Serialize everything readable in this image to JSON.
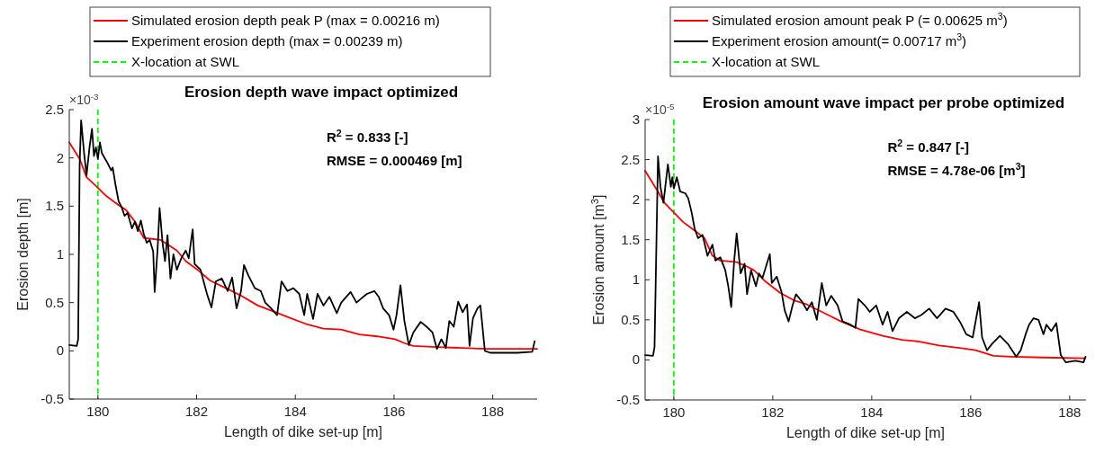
{
  "chart_data": [
    {
      "type": "line",
      "title": "Erosion depth wave impact optimized",
      "xlabel": "Length of dike set-up [m]",
      "ylabel": "Erosion depth [m]",
      "xlim": [
        179.42,
        188.9
      ],
      "xticks": [
        180,
        182,
        184,
        186,
        188
      ],
      "ylim": [
        -0.5,
        2.5
      ],
      "yticks": [
        -0.5,
        0,
        0.5,
        1,
        1.5,
        2,
        2.5
      ],
      "grid": false,
      "legend": "top",
      "annotations": [
        "R$^{2}$ = 0.833 [-]",
        "RMSE = 0.000469 [m]",
        "×10$^{-3}$"
      ],
      "ref_lines": [
        {
          "axis": "x",
          "value": 180,
          "label": "X-location at SWL",
          "color": "#00ff00",
          "line_style": "dashed"
        }
      ],
      "series": [
        {
          "name": "Simulated erosion depth peak P (max = 0.00216 m)",
          "color": "#ff0000",
          "x": [
            179.42,
            179.63,
            179.77,
            179.96,
            180.18,
            180.42,
            180.57,
            180.75,
            180.93,
            181.27,
            181.42,
            181.6,
            181.78,
            182.02,
            182.27,
            182.51,
            182.87,
            183.24,
            183.6,
            183.9,
            184.21,
            184.57,
            184.93,
            185.3,
            185.66,
            186.02,
            186.21,
            186.39,
            186.87,
            187.84,
            188.9
          ],
          "values": [
            2.16,
            1.99,
            1.8,
            1.71,
            1.6,
            1.51,
            1.46,
            1.34,
            1.17,
            1.15,
            1.1,
            1.04,
            0.93,
            0.84,
            0.73,
            0.67,
            0.58,
            0.47,
            0.4,
            0.34,
            0.28,
            0.23,
            0.22,
            0.17,
            0.15,
            0.12,
            0.08,
            0.05,
            0.04,
            0.02,
            0.02
          ]
        },
        {
          "name": "Experiment erosion depth (max = 0.00239 m)",
          "color": "#000000",
          "x": [
            179.42,
            179.57,
            179.6,
            179.63,
            179.66,
            179.72,
            179.77,
            179.83,
            179.88,
            179.92,
            179.96,
            180,
            180.04,
            180.08,
            180.18,
            180.27,
            180.3,
            180.36,
            180.42,
            180.48,
            180.54,
            180.6,
            180.69,
            180.75,
            180.81,
            180.87,
            180.93,
            180.99,
            181.05,
            181.12,
            181.15,
            181.21,
            181.25,
            181.31,
            181.36,
            181.41,
            181.47,
            181.53,
            181.6,
            181.69,
            181.78,
            181.84,
            181.92,
            181.96,
            182.08,
            182.21,
            182.3,
            182.39,
            182.51,
            182.63,
            182.72,
            182.81,
            182.9,
            182.96,
            183.05,
            183.18,
            183.3,
            183.39,
            183.51,
            183.63,
            183.72,
            183.84,
            183.96,
            184.08,
            184.18,
            184.24,
            184.36,
            184.45,
            184.57,
            184.69,
            184.84,
            184.93,
            185.12,
            185.24,
            185.33,
            185.45,
            185.6,
            185.69,
            185.78,
            185.9,
            185.99,
            186.05,
            186.13,
            186.21,
            186.3,
            186.39,
            186.54,
            186.66,
            186.78,
            186.87,
            186.96,
            187.05,
            187.12,
            187.21,
            187.3,
            187.39,
            187.48,
            187.53,
            187.6,
            187.69,
            187.75,
            187.84,
            187.95,
            188.5,
            188.8,
            188.85
          ],
          "values": [
            0.06,
            0.05,
            0.12,
            1.93,
            2.39,
            2.05,
            1.82,
            2.11,
            2.3,
            2.02,
            2.11,
            1.99,
            2.16,
            2.05,
            1.96,
            1.87,
            1.9,
            1.71,
            1.55,
            1.49,
            1.4,
            1.43,
            1.27,
            1.34,
            1.24,
            1.35,
            1.21,
            1.12,
            1.15,
            1.03,
            0.61,
            1.06,
            1.48,
            1.12,
            0.93,
            1.2,
            0.75,
            1,
            0.84,
            0.96,
            1.04,
            0.96,
            1.26,
            0.9,
            0.84,
            0.59,
            0.45,
            0.72,
            0.75,
            0.62,
            0.76,
            0.44,
            0.62,
            0.89,
            0.78,
            0.65,
            0.62,
            0.5,
            0.44,
            0.37,
            0.72,
            0.62,
            0.65,
            0.59,
            0.37,
            0.59,
            0.33,
            0.59,
            0.47,
            0.56,
            0.39,
            0.5,
            0.61,
            0.5,
            0.54,
            0.59,
            0.62,
            0.56,
            0.44,
            0.37,
            0.22,
            0.37,
            0.68,
            0.31,
            0.06,
            0.19,
            0.3,
            0.25,
            0.19,
            0.02,
            0.12,
            0.03,
            0.31,
            0.25,
            0.51,
            0.4,
            0.48,
            0.05,
            0.34,
            0.44,
            0.47,
            0,
            -0.02,
            -0.02,
            -0.01,
            0.1
          ]
        }
      ]
    },
    {
      "type": "line",
      "title": "Erosion amount wave impact per probe optimized",
      "xlabel": "Length of dike set-up [m]",
      "ylabel": "Erosion amount [m$^{3}$]",
      "xlim": [
        179.42,
        188.33
      ],
      "xticks": [
        180,
        182,
        184,
        186,
        188
      ],
      "ylim": [
        -0.5,
        3
      ],
      "yticks": [
        -0.5,
        0,
        0.5,
        1,
        1.5,
        2,
        2.5,
        3
      ],
      "grid": false,
      "legend": "top",
      "annotations": [
        "R$^{2}$ = 0.847 [-]",
        "RMSE = 4.78e-06 [m$^{3}$]",
        "×10$^{-5}$"
      ],
      "ref_lines": [
        {
          "axis": "x",
          "value": 180,
          "label": "X-location at SWL",
          "color": "#00ff00",
          "line_style": "dashed"
        }
      ],
      "series": [
        {
          "name": "Simulated erosion amount peak P (= 0.00625 m$^{3}$)",
          "color": "#ff0000",
          "x": [
            179.42,
            179.68,
            179.81,
            180,
            180.19,
            180.45,
            180.62,
            180.78,
            180.94,
            181.27,
            181.43,
            181.62,
            181.85,
            182.14,
            182.44,
            182.66,
            183.12,
            183.38,
            183.77,
            184.22,
            184.61,
            184.94,
            185.36,
            185.78,
            186.1,
            186.46,
            186.82,
            187.47,
            188.31
          ],
          "values": [
            2.36,
            2.1,
            1.96,
            1.84,
            1.72,
            1.6,
            1.52,
            1.3,
            1.24,
            1.22,
            1.18,
            1.12,
            0.98,
            0.84,
            0.74,
            0.7,
            0.56,
            0.48,
            0.38,
            0.3,
            0.25,
            0.23,
            0.18,
            0.15,
            0.12,
            0.05,
            0.04,
            0.03,
            0.02
          ]
        },
        {
          "name": "Experiment erosion amount(= 0.00717 m$^{3}$)",
          "color": "#000000",
          "x": [
            179.42,
            179.58,
            179.61,
            179.68,
            179.73,
            179.79,
            179.88,
            179.94,
            179.97,
            180,
            180.06,
            180.13,
            180.23,
            180.29,
            180.36,
            180.42,
            180.49,
            180.58,
            180.68,
            180.78,
            180.84,
            180.94,
            181.04,
            181.1,
            181.16,
            181.22,
            181.27,
            181.35,
            181.43,
            181.48,
            181.56,
            181.66,
            181.72,
            181.79,
            181.88,
            181.94,
            181.98,
            182.08,
            182.18,
            182.24,
            182.32,
            182.4,
            182.47,
            182.6,
            182.69,
            182.79,
            182.89,
            182.99,
            183.08,
            183.18,
            183.31,
            183.41,
            183.57,
            183.67,
            183.73,
            183.86,
            183.96,
            184.09,
            184.22,
            184.32,
            184.42,
            184.55,
            184.71,
            184.87,
            185,
            185.16,
            185.32,
            185.49,
            185.65,
            185.78,
            185.91,
            186.04,
            186.17,
            186.23,
            186.33,
            186.43,
            186.59,
            186.75,
            186.92,
            187.01,
            187.11,
            187.18,
            187.27,
            187.37,
            187.47,
            187.53,
            187.63,
            187.73,
            187.82,
            187.92,
            188.12,
            188.28,
            188.32
          ],
          "values": [
            0.06,
            0.05,
            0.16,
            2.54,
            2.16,
            1.96,
            2.44,
            2.16,
            2.28,
            2.14,
            2.28,
            2.1,
            2.08,
            2.02,
            1.84,
            1.64,
            1.52,
            1.56,
            1.3,
            1.44,
            1.24,
            1.28,
            1.12,
            0.92,
            0.66,
            1.24,
            1.58,
            1.08,
            1.2,
            0.82,
            1.12,
            0.92,
            1.08,
            1.02,
            1.2,
            1.32,
            0.96,
            1.04,
            0.84,
            0.62,
            0.48,
            0.68,
            0.82,
            0.72,
            0.62,
            0.72,
            0.5,
            0.96,
            0.68,
            0.8,
            0.68,
            0.48,
            0.44,
            0.4,
            0.76,
            0.68,
            0.6,
            0.68,
            0.44,
            0.6,
            0.36,
            0.52,
            0.6,
            0.52,
            0.56,
            0.64,
            0.52,
            0.64,
            0.6,
            0.48,
            0.32,
            0.28,
            0.72,
            0.28,
            0.12,
            0.2,
            0.3,
            0.2,
            0.04,
            0.12,
            0.32,
            0.44,
            0.52,
            0.5,
            0.32,
            0.44,
            0.36,
            0.46,
            0.06,
            -0.03,
            -0.01,
            -0.03,
            0.04
          ]
        }
      ]
    }
  ]
}
